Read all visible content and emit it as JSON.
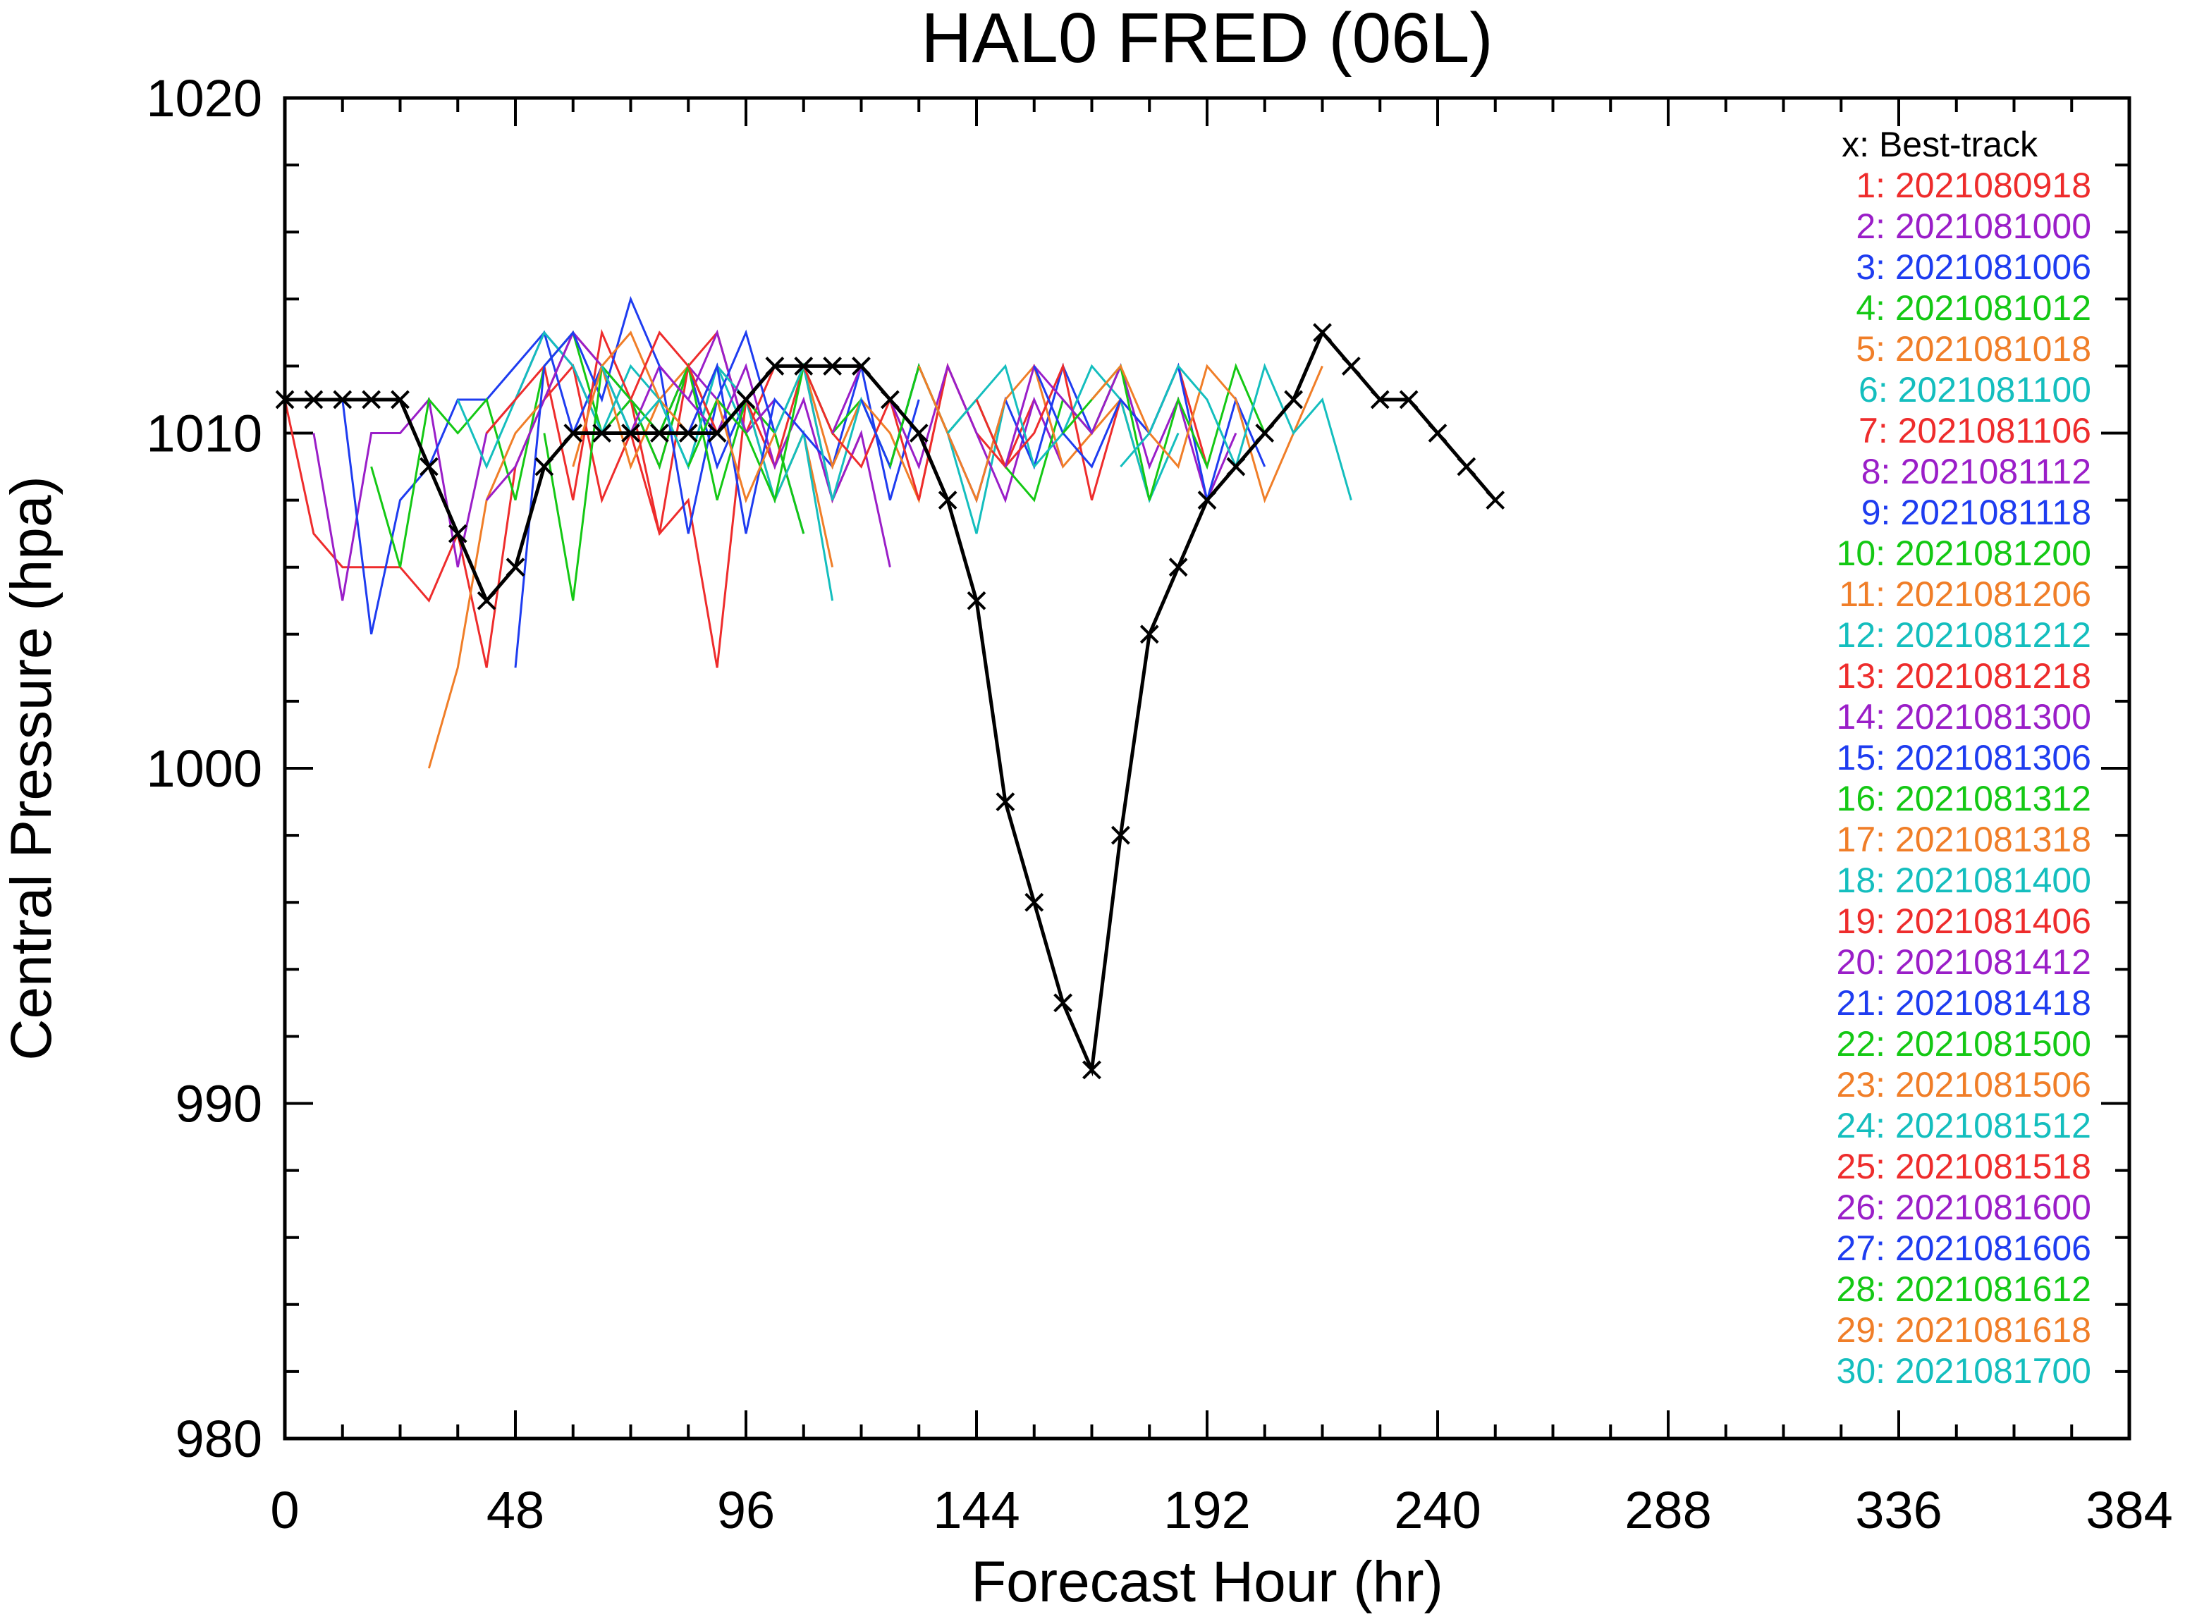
{
  "chart_data": {
    "type": "line",
    "title": "HAL0  FRED (06L)",
    "xlabel": "Forecast Hour (hr)",
    "ylabel": "Central Pressure (hpa)",
    "xlim": [
      0,
      384
    ],
    "ylim": [
      980,
      1020
    ],
    "xticks": [
      0,
      48,
      96,
      144,
      192,
      240,
      288,
      336,
      384
    ],
    "yticks": [
      980,
      990,
      1000,
      1010,
      1020
    ],
    "legend_position": "top-right",
    "best_track": {
      "label": "x: Best-track",
      "color": "#000000",
      "x": [
        0,
        6,
        12,
        18,
        24,
        30,
        36,
        42,
        48,
        54,
        60,
        66,
        72,
        78,
        84,
        90,
        96,
        102,
        108,
        114,
        120,
        126,
        132,
        138,
        144,
        150,
        156,
        162,
        168,
        174,
        180,
        186,
        192,
        198,
        204,
        210,
        216,
        222,
        228,
        234,
        240,
        246,
        252
      ],
      "y": [
        1011,
        1011,
        1011,
        1011,
        1011,
        1009,
        1007,
        1005,
        1006,
        1009,
        1010,
        1010,
        1010,
        1010,
        1010,
        1010,
        1011,
        1012,
        1012,
        1012,
        1012,
        1011,
        1010,
        1008,
        1005,
        999,
        996,
        993,
        991,
        998,
        1004,
        1006,
        1008,
        1009,
        1010,
        1011,
        1013,
        1012,
        1011,
        1011,
        1010,
        1009,
        1008
      ]
    },
    "series": [
      {
        "name": "1: 2021080918",
        "color": "#ee2c2c",
        "x0": 0,
        "values": [
          1011,
          1007,
          1006,
          1006,
          1006,
          1005,
          1007,
          1003,
          1009,
          1011,
          1012,
          1008,
          1010,
          1007,
          1008,
          1003,
          1011
        ]
      },
      {
        "name": "2: 2021081000",
        "color": "#9a1ec8",
        "x0": 6,
        "values": [
          1010,
          1005,
          1010,
          1010,
          1011,
          1006,
          1010,
          1011,
          1013,
          1012,
          1010,
          1011,
          1009,
          1012,
          1011,
          1010
        ]
      },
      {
        "name": "3: 2021081006",
        "color": "#1e3cf0",
        "x0": 12,
        "values": [
          1011,
          1004,
          1008,
          1009,
          1011,
          1011,
          1012,
          1013,
          1010,
          1012,
          1011,
          1010,
          1012,
          1009,
          1011
        ]
      },
      {
        "name": "4: 2021081012",
        "color": "#14c814",
        "x0": 18,
        "values": [
          1009,
          1006,
          1011,
          1010,
          1011,
          1008,
          1012,
          1013,
          1010,
          1011,
          1009,
          1012,
          1010,
          1011
        ]
      },
      {
        "name": "5: 2021081018",
        "color": "#f07e28",
        "x0": 30,
        "values": [
          1000,
          1003,
          1008,
          1010,
          1011,
          1013,
          1012,
          1009,
          1011,
          1012,
          1010,
          1011,
          1012
        ]
      },
      {
        "name": "6: 2021081100",
        "color": "#14bebe",
        "x0": 36,
        "values": [
          1011,
          1009,
          1011,
          1013,
          1012,
          1010,
          1012,
          1011,
          1009,
          1012,
          1010,
          1011
        ]
      },
      {
        "name": "7: 2021081106",
        "color": "#ee2c2c",
        "x0": 42,
        "values": [
          1010,
          1011,
          1012,
          1008,
          1013,
          1011,
          1007,
          1012,
          1013,
          1010,
          1012
        ]
      },
      {
        "name": "8: 2021081112",
        "color": "#9a1ec8",
        "x0": 42,
        "values": [
          1008,
          1009,
          1011,
          1013,
          1012,
          1010,
          1012,
          1011,
          1013,
          1010,
          1011
        ]
      },
      {
        "name": "9: 2021081118",
        "color": "#1e3cf0",
        "x0": 48,
        "values": [
          1003,
          1012,
          1013,
          1011,
          1014,
          1012,
          1007,
          1011,
          1013,
          1010,
          1007
        ]
      },
      {
        "name": "10: 2021081200",
        "color": "#14c814",
        "x0": 54,
        "values": [
          1010,
          1005,
          1012,
          1011,
          1010,
          1012,
          1008,
          1011,
          1010,
          1007
        ]
      },
      {
        "name": "11: 2021081206",
        "color": "#f07e28",
        "x0": 60,
        "values": [
          1009,
          1012,
          1013,
          1011,
          1010,
          1012,
          1011,
          1008,
          1010,
          1006
        ]
      },
      {
        "name": "12: 2021081212",
        "color": "#14bebe",
        "x0": 66,
        "values": [
          1012,
          1010,
          1011,
          1009,
          1012,
          1011,
          1008,
          1010,
          1005
        ]
      },
      {
        "name": "13: 2021081218",
        "color": "#ee2c2c",
        "x0": 72,
        "values": [
          1011,
          1013,
          1012,
          1010,
          1011,
          1009,
          1012,
          1008,
          1010
        ]
      },
      {
        "name": "14: 2021081300",
        "color": "#9a1ec8",
        "x0": 78,
        "values": [
          1012,
          1011,
          1010,
          1012,
          1009,
          1011,
          1008,
          1010,
          1006
        ]
      },
      {
        "name": "15: 2021081306",
        "color": "#1e3cf0",
        "x0": 84,
        "values": [
          1010,
          1012,
          1007,
          1011,
          1010,
          1009,
          1012,
          1008,
          1011
        ]
      },
      {
        "name": "16: 2021081312",
        "color": "#14c814",
        "x0": 84,
        "values": [
          1009,
          1011,
          1010,
          1008,
          1012,
          1010,
          1011,
          1009,
          1012
        ]
      },
      {
        "name": "17: 2021081318",
        "color": "#f07e28",
        "x0": 90,
        "values": [
          1011,
          1008,
          1010,
          1012,
          1009,
          1011,
          1010,
          1008,
          1012
        ]
      },
      {
        "name": "18: 2021081400",
        "color": "#14bebe",
        "x0": 102,
        "values": [
          1010,
          1012,
          1008,
          1011,
          1009,
          1012,
          1010,
          1007,
          1011
        ]
      },
      {
        "name": "19: 2021081406",
        "color": "#ee2c2c",
        "x0": 108,
        "values": [
          1012,
          1010,
          1009,
          1011,
          1008,
          1012,
          1010,
          1009,
          1011
        ]
      },
      {
        "name": "20: 2021081412",
        "color": "#9a1ec8",
        "x0": 114,
        "values": [
          1010,
          1012,
          1011,
          1009,
          1012,
          1010,
          1008,
          1011,
          1009
        ]
      },
      {
        "name": "21: 2021081418",
        "color": "#1e3cf0",
        "x0": 120,
        "values": [
          1011,
          1009,
          1012,
          1010,
          1008,
          1011,
          1009,
          1012,
          1010
        ]
      },
      {
        "name": "22: 2021081500",
        "color": "#14c814",
        "x0": 126,
        "values": [
          1009,
          1012,
          1010,
          1011,
          1009,
          1008,
          1011,
          1010,
          1012
        ]
      },
      {
        "name": "23: 2021081506",
        "color": "#f07e28",
        "x0": 132,
        "values": [
          1012,
          1010,
          1008,
          1011,
          1012,
          1009,
          1010,
          1011,
          1008
        ]
      },
      {
        "name": "24: 2021081512",
        "color": "#14bebe",
        "x0": 138,
        "values": [
          1010,
          1011,
          1012,
          1009,
          1010,
          1012,
          1011,
          1008,
          1010
        ]
      },
      {
        "name": "25: 2021081518",
        "color": "#ee2c2c",
        "x0": 144,
        "values": [
          1011,
          1009,
          1010,
          1012,
          1008,
          1011,
          1010,
          1012,
          1009
        ]
      },
      {
        "name": "26: 2021081600",
        "color": "#9a1ec8",
        "x0": 150,
        "values": [
          1009,
          1012,
          1011,
          1010,
          1012,
          1009,
          1011,
          1008,
          1010
        ]
      },
      {
        "name": "27: 2021081606",
        "color": "#1e3cf0",
        "x0": 156,
        "values": [
          1012,
          1010,
          1009,
          1011,
          1010,
          1012,
          1008,
          1011,
          1009
        ]
      },
      {
        "name": "28: 2021081612",
        "color": "#14c814",
        "x0": 162,
        "values": [
          1010,
          1011,
          1012,
          1008,
          1011,
          1009,
          1012,
          1010,
          1011
        ]
      },
      {
        "name": "29: 2021081618",
        "color": "#f07e28",
        "x0": 168,
        "values": [
          1011,
          1012,
          1010,
          1009,
          1012,
          1011,
          1008,
          1010,
          1012
        ]
      },
      {
        "name": "30: 2021081700",
        "color": "#14bebe",
        "x0": 174,
        "values": [
          1009,
          1010,
          1012,
          1011,
          1009,
          1012,
          1010,
          1011,
          1008
        ]
      }
    ]
  }
}
